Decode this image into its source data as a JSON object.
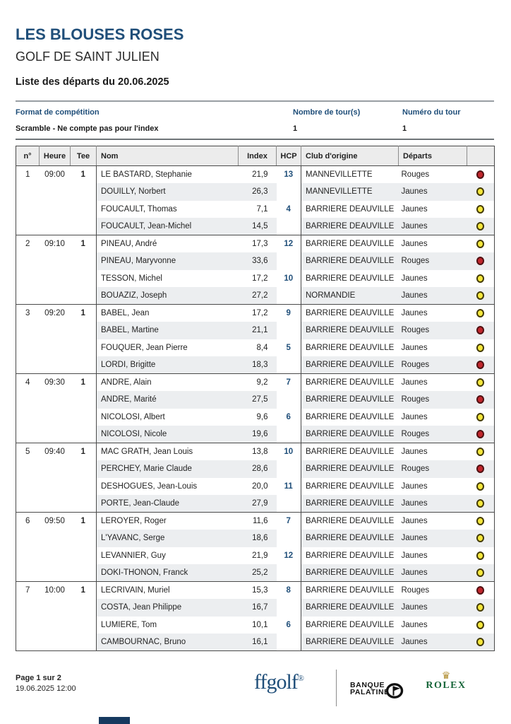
{
  "colors": {
    "accent": "#1f4e79",
    "dot_red_fill": "#c1272d",
    "dot_red_border": "#4f1012",
    "dot_yellow_fill": "#f5e73c",
    "dot_yellow_border": "#433a05"
  },
  "header": {
    "title": "LES BLOUSES ROSES",
    "course": "GOLF DE SAINT JULIEN",
    "list_title": "Liste des départs du 20.06.2025"
  },
  "competition": {
    "format_label": "Format de compétition",
    "format_value": "Scramble - Ne compte pas pour l'index",
    "rounds_label": "Nombre de tour(s)",
    "rounds_value": "1",
    "tour_label": "Numéro du tour",
    "tour_value": "1"
  },
  "table": {
    "headers": [
      "n°",
      "Heure",
      "Tee",
      "Nom",
      "Index",
      "HCP",
      "Club d'origine",
      "Départs"
    ],
    "groups": [
      {
        "num": "1",
        "time": "09:00",
        "tee": "1",
        "players": [
          {
            "name": "LE BASTARD, Stephanie",
            "index": "21,9",
            "hcp": "13",
            "club": "MANNEVILLETTE",
            "departs": "Rouges",
            "color": "red"
          },
          {
            "name": "DOUILLY, Norbert",
            "index": "26,3",
            "hcp": "",
            "club": "MANNEVILLETTE",
            "departs": "Jaunes",
            "color": "yellow"
          },
          {
            "name": "FOUCAULT, Thomas",
            "index": "7,1",
            "hcp": "4",
            "club": "BARRIERE DEAUVILLE",
            "departs": "Jaunes",
            "color": "yellow"
          },
          {
            "name": "FOUCAULT, Jean-Michel",
            "index": "14,5",
            "hcp": "",
            "club": "BARRIERE DEAUVILLE",
            "departs": "Jaunes",
            "color": "yellow"
          }
        ]
      },
      {
        "num": "2",
        "time": "09:10",
        "tee": "1",
        "players": [
          {
            "name": "PINEAU, André",
            "index": "17,3",
            "hcp": "12",
            "club": "BARRIERE DEAUVILLE",
            "departs": "Jaunes",
            "color": "yellow"
          },
          {
            "name": "PINEAU, Maryvonne",
            "index": "33,6",
            "hcp": "",
            "club": "BARRIERE DEAUVILLE",
            "departs": "Rouges",
            "color": "red"
          },
          {
            "name": "TESSON, Michel",
            "index": "17,2",
            "hcp": "10",
            "club": "BARRIERE DEAUVILLE",
            "departs": "Jaunes",
            "color": "yellow"
          },
          {
            "name": "BOUAZIZ, Joseph",
            "index": "27,2",
            "hcp": "",
            "club": "NORMANDIE",
            "departs": "Jaunes",
            "color": "yellow"
          }
        ]
      },
      {
        "num": "3",
        "time": "09:20",
        "tee": "1",
        "players": [
          {
            "name": "BABEL, Jean",
            "index": "17,2",
            "hcp": "9",
            "club": "BARRIERE DEAUVILLE",
            "departs": "Jaunes",
            "color": "yellow"
          },
          {
            "name": "BABEL, Martine",
            "index": "21,1",
            "hcp": "",
            "club": "BARRIERE DEAUVILLE",
            "departs": "Rouges",
            "color": "red"
          },
          {
            "name": "FOUQUER, Jean Pierre",
            "index": "8,4",
            "hcp": "5",
            "club": "BARRIERE DEAUVILLE",
            "departs": "Jaunes",
            "color": "yellow"
          },
          {
            "name": "LORDI, Brigitte",
            "index": "18,3",
            "hcp": "",
            "club": "BARRIERE DEAUVILLE",
            "departs": "Rouges",
            "color": "red"
          }
        ]
      },
      {
        "num": "4",
        "time": "09:30",
        "tee": "1",
        "players": [
          {
            "name": "ANDRE, Alain",
            "index": "9,2",
            "hcp": "7",
            "club": "BARRIERE DEAUVILLE",
            "departs": "Jaunes",
            "color": "yellow"
          },
          {
            "name": "ANDRE, Marité",
            "index": "27,5",
            "hcp": "",
            "club": "BARRIERE DEAUVILLE",
            "departs": "Rouges",
            "color": "red"
          },
          {
            "name": "NICOLOSI, Albert",
            "index": "9,6",
            "hcp": "6",
            "club": "BARRIERE DEAUVILLE",
            "departs": "Jaunes",
            "color": "yellow"
          },
          {
            "name": "NICOLOSI, Nicole",
            "index": "19,6",
            "hcp": "",
            "club": "BARRIERE DEAUVILLE",
            "departs": "Rouges",
            "color": "red"
          }
        ]
      },
      {
        "num": "5",
        "time": "09:40",
        "tee": "1",
        "players": [
          {
            "name": "MAC GRATH, Jean Louis",
            "index": "13,8",
            "hcp": "10",
            "club": "BARRIERE DEAUVILLE",
            "departs": "Jaunes",
            "color": "yellow"
          },
          {
            "name": "PERCHEY, Marie Claude",
            "index": "28,6",
            "hcp": "",
            "club": "BARRIERE DEAUVILLE",
            "departs": "Rouges",
            "color": "red"
          },
          {
            "name": "DESHOGUES, Jean-Louis",
            "index": "20,0",
            "hcp": "11",
            "club": "BARRIERE DEAUVILLE",
            "departs": "Jaunes",
            "color": "yellow"
          },
          {
            "name": "PORTE, Jean-Claude",
            "index": "27,9",
            "hcp": "",
            "club": "BARRIERE DEAUVILLE",
            "departs": "Jaunes",
            "color": "yellow"
          }
        ]
      },
      {
        "num": "6",
        "time": "09:50",
        "tee": "1",
        "players": [
          {
            "name": "LEROYER, Roger",
            "index": "11,6",
            "hcp": "7",
            "club": "BARRIERE DEAUVILLE",
            "departs": "Jaunes",
            "color": "yellow"
          },
          {
            "name": "L'YAVANC, Serge",
            "index": "18,6",
            "hcp": "",
            "club": "BARRIERE DEAUVILLE",
            "departs": "Jaunes",
            "color": "yellow"
          },
          {
            "name": "LEVANNIER, Guy",
            "index": "21,9",
            "hcp": "12",
            "club": "BARRIERE DEAUVILLE",
            "departs": "Jaunes",
            "color": "yellow"
          },
          {
            "name": "DOKI-THONON, Franck",
            "index": "25,2",
            "hcp": "",
            "club": "BARRIERE DEAUVILLE",
            "departs": "Jaunes",
            "color": "yellow"
          }
        ]
      },
      {
        "num": "7",
        "time": "10:00",
        "tee": "1",
        "players": [
          {
            "name": "LECRIVAIN, Muriel",
            "index": "15,3",
            "hcp": "8",
            "club": "BARRIERE DEAUVILLE",
            "departs": "Rouges",
            "color": "red"
          },
          {
            "name": "COSTA, Jean Philippe",
            "index": "16,7",
            "hcp": "",
            "club": "BARRIERE DEAUVILLE",
            "departs": "Jaunes",
            "color": "yellow"
          },
          {
            "name": "LUMIERE, Tom",
            "index": "10,1",
            "hcp": "6",
            "club": "BARRIERE DEAUVILLE",
            "departs": "Jaunes",
            "color": "yellow"
          },
          {
            "name": "CAMBOURNAC, Bruno",
            "index": "16,1",
            "hcp": "",
            "club": "BARRIERE DEAUVILLE",
            "departs": "Jaunes",
            "color": "yellow"
          }
        ]
      }
    ]
  },
  "footer": {
    "page_info": "Page 1 sur 2",
    "generated": "19.06.2025 12:00",
    "ffgolf_text": "ffgolf",
    "ffgolf_mark": "®",
    "banque_line1": "BANQUE",
    "banque_line2": "PALATINE",
    "rolex_crown": "♛",
    "rolex_text": "ROLEX"
  }
}
